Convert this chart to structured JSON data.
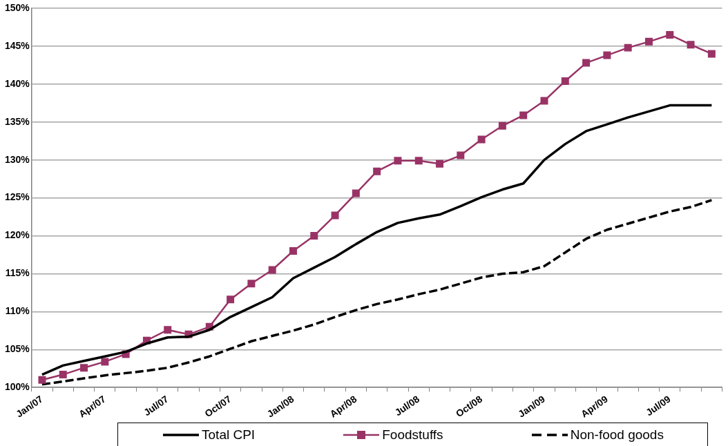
{
  "chart_data": {
    "type": "line",
    "categories": [
      "Jan/07",
      null,
      null,
      "Apr/07",
      null,
      null,
      "Jul/07",
      null,
      null,
      "Oct/07",
      null,
      null,
      "Jan/08",
      null,
      null,
      "Apr/08",
      null,
      null,
      "Jul/08",
      null,
      null,
      "Oct/08",
      null,
      null,
      "Jan/09",
      null,
      null,
      "Apr/09",
      null,
      null,
      "Jul/09",
      null,
      null
    ],
    "ylim": [
      100,
      150
    ],
    "yticks": [
      {
        "value": 100,
        "label": "100%"
      },
      {
        "value": 105,
        "label": "105%"
      },
      {
        "value": 110,
        "label": "110%"
      },
      {
        "value": 115,
        "label": "115%"
      },
      {
        "value": 120,
        "label": "120%"
      },
      {
        "value": 125,
        "label": "125%"
      },
      {
        "value": 130,
        "label": "130%"
      },
      {
        "value": 135,
        "label": "135%"
      },
      {
        "value": 140,
        "label": "140%"
      },
      {
        "value": 145,
        "label": "145%"
      },
      {
        "value": 150,
        "label": "150%"
      }
    ],
    "grid": "y",
    "legend": "bottom",
    "series": [
      {
        "name": "Total CPI",
        "color": "#000000",
        "marker": "none",
        "line_style": "solid",
        "values": [
          101.7,
          102.9,
          103.5,
          104.1,
          104.7,
          105.8,
          106.6,
          106.7,
          107.6,
          109.3,
          110.6,
          111.9,
          114.4,
          115.8,
          117.2,
          118.9,
          120.5,
          121.7,
          122.3,
          122.8,
          123.9,
          125.1,
          126.1,
          126.9,
          130.0,
          132.1,
          133.8,
          134.7,
          135.6,
          136.4,
          137.2,
          137.2,
          137.2
        ]
      },
      {
        "name": "Foodstuffs",
        "color": "#993366",
        "marker": "square",
        "line_style": "solid",
        "values": [
          101.0,
          101.7,
          102.6,
          103.4,
          104.4,
          106.2,
          107.6,
          107.0,
          108.0,
          111.6,
          113.7,
          115.5,
          118.0,
          120.0,
          122.7,
          125.6,
          128.5,
          129.9,
          129.9,
          129.5,
          130.6,
          132.7,
          134.5,
          135.9,
          137.8,
          140.4,
          142.8,
          143.8,
          144.8,
          145.6,
          146.5,
          145.2,
          144.0
        ]
      },
      {
        "name": "Non-food goods",
        "color": "#000000",
        "marker": "none",
        "line_style": "dashed",
        "values": [
          100.4,
          100.8,
          101.2,
          101.6,
          101.9,
          102.2,
          102.6,
          103.3,
          104.1,
          105.1,
          106.1,
          106.8,
          107.5,
          108.3,
          109.3,
          110.2,
          111.0,
          111.6,
          112.3,
          112.9,
          113.7,
          114.5,
          115.0,
          115.2,
          116.0,
          117.8,
          119.6,
          120.8,
          121.6,
          122.4,
          123.2,
          123.8,
          124.7
        ]
      }
    ]
  }
}
